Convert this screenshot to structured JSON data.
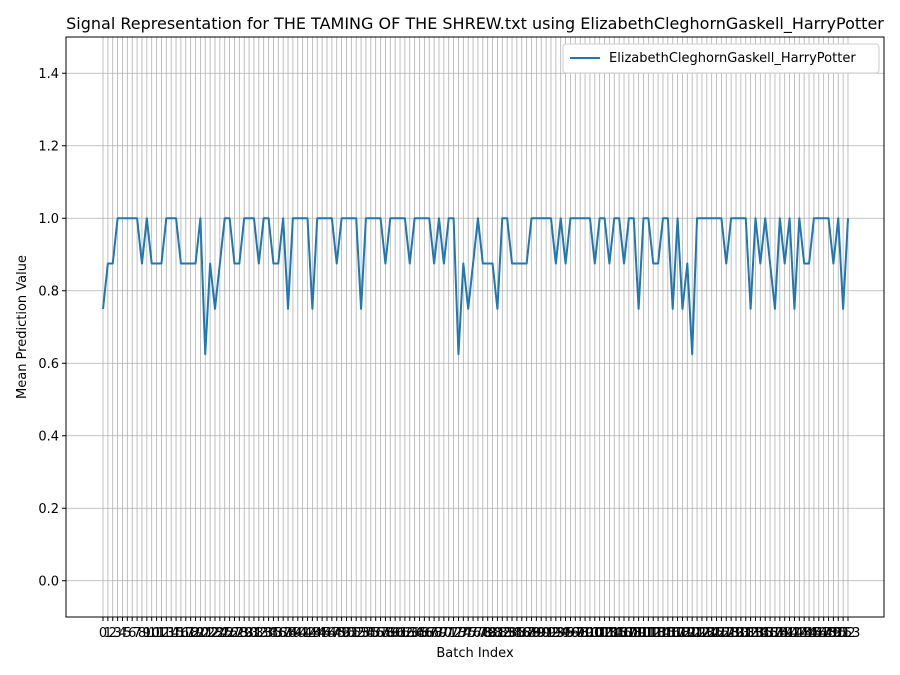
{
  "chart_data": {
    "type": "line",
    "title": "Signal Representation for THE TAMING OF THE SHREW.txt using ElizabethCleghornGaskell_HarryPotter",
    "xlabel": "Batch Index",
    "ylabel": "Mean Prediction Value",
    "ylim": [
      -0.1,
      1.5
    ],
    "yticks": [
      "0.0",
      "0.2",
      "0.4",
      "0.6",
      "0.8",
      "1.0",
      "1.2",
      "1.4"
    ],
    "grid": true,
    "legend_position": "top-right",
    "series": [
      {
        "name": "ElizabethCleghornGaskell_HarryPotter",
        "color": "#1f77b4",
        "values": [
          0.75,
          0.875,
          0.875,
          1,
          1,
          1,
          1,
          1,
          0.875,
          1,
          0.875,
          0.875,
          0.875,
          1,
          1,
          1,
          0.875,
          0.875,
          0.875,
          0.875,
          1,
          0.625,
          0.875,
          0.75,
          0.875,
          1,
          1,
          0.875,
          0.875,
          1,
          1,
          1,
          0.875,
          1,
          1,
          0.875,
          0.875,
          1,
          0.75,
          1,
          1,
          1,
          1,
          0.75,
          1,
          1,
          1,
          1,
          0.875,
          1,
          1,
          1,
          1,
          0.75,
          1,
          1,
          1,
          1,
          0.875,
          1,
          1,
          1,
          1,
          0.875,
          1,
          1,
          1,
          1,
          0.875,
          1,
          0.875,
          1,
          1,
          0.625,
          0.875,
          0.75,
          0.875,
          1,
          0.875,
          0.875,
          0.875,
          0.75,
          1,
          1,
          0.875,
          0.875,
          0.875,
          0.875,
          1,
          1,
          1,
          1,
          1,
          0.875,
          1,
          0.875,
          1,
          1,
          1,
          1,
          1,
          0.875,
          1,
          1,
          0.875,
          1,
          1,
          0.875,
          1,
          1,
          0.75,
          1,
          1,
          0.875,
          0.875,
          1,
          1,
          0.75,
          1,
          0.75,
          0.875,
          0.625,
          1,
          1,
          1,
          1,
          1,
          1,
          0.875,
          1,
          1,
          1,
          1,
          0.75,
          1,
          0.875,
          1,
          0.875,
          0.75,
          1,
          0.875,
          1,
          0.75,
          1,
          0.875,
          0.875,
          1,
          1,
          1,
          1,
          0.875,
          1,
          0.75,
          1
        ]
      }
    ],
    "x_tick_labels": [
      "0",
      "1",
      "2",
      "3",
      "4",
      "5",
      "6",
      "7",
      "8",
      "9",
      "10",
      "11",
      "12",
      "13",
      "14",
      "15",
      "16",
      "17",
      "18",
      "19",
      "20",
      "21",
      "22",
      "23",
      "24",
      "25",
      "26",
      "27",
      "28",
      "29",
      "30",
      "31",
      "32",
      "33",
      "34",
      "35",
      "36",
      "37",
      "38",
      "39",
      "40",
      "41",
      "42",
      "43",
      "44",
      "45",
      "46",
      "47",
      "48",
      "49",
      "50",
      "51",
      "52",
      "53",
      "54",
      "55",
      "56",
      "57",
      "58",
      "59",
      "60",
      "61",
      "62",
      "63",
      "64",
      "65",
      "66",
      "67",
      "68",
      "69",
      "70",
      "71",
      "72",
      "73",
      "74",
      "75",
      "76",
      "77",
      "78",
      "79",
      "80",
      "81",
      "82",
      "83",
      "84",
      "85",
      "86",
      "87",
      "88",
      "89",
      "90",
      "91",
      "92",
      "93",
      "94",
      "95",
      "96",
      "97",
      "98",
      "99",
      "100",
      "101",
      "102",
      "103",
      "104",
      "105",
      "106",
      "107",
      "108",
      "109",
      "110",
      "111",
      "112",
      "113",
      "114",
      "115",
      "116",
      "117",
      "118",
      "119",
      "120",
      "121",
      "122",
      "123",
      "124",
      "125",
      "126",
      "127",
      "128",
      "129",
      "130",
      "131",
      "132",
      "133",
      "134",
      "135",
      "136",
      "137",
      "138",
      "139",
      "140",
      "141",
      "142",
      "143",
      "144",
      "145",
      "146",
      "147",
      "148",
      "149",
      "150",
      "151",
      "152",
      "153"
    ]
  }
}
